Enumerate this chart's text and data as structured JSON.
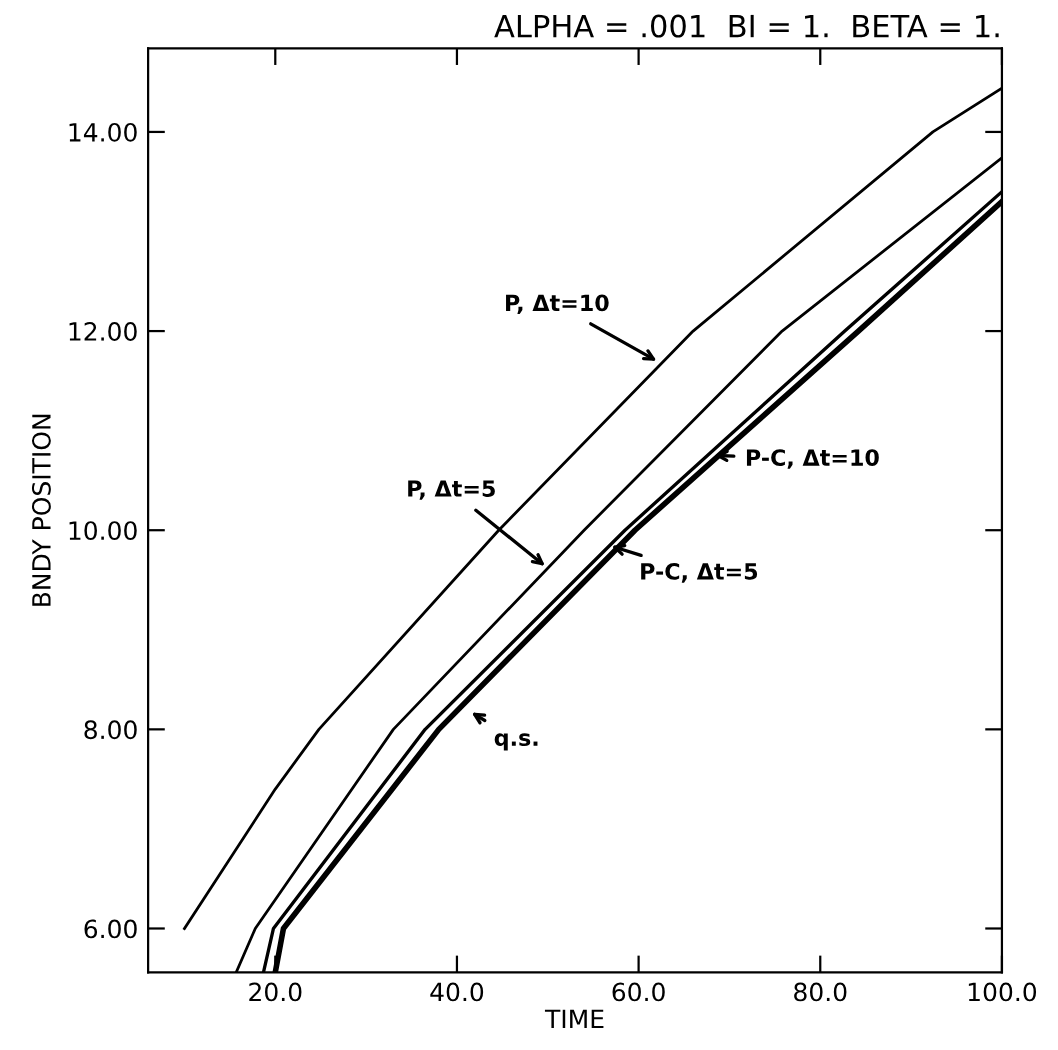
{
  "chart_data": {
    "type": "line",
    "title": "ALPHA = .001  BI = 1.  BETA = 1.",
    "xlabel": "TIME",
    "ylabel": "BNDY POSITION",
    "series": [
      {
        "color": "#000000",
        "x": [
          10,
          20,
          24.8,
          44.6,
          66,
          92.4,
          100
        ],
        "values": [
          6,
          7.4,
          8,
          10,
          12,
          14,
          14.44
        ]
      },
      {
        "color": "#000000",
        "x": [
          15.7,
          17.8,
          33,
          54,
          75.8,
          100
        ],
        "values": [
          5.56,
          6,
          8,
          10,
          12,
          13.74
        ]
      },
      {
        "color": "#000000",
        "x": [
          18.7,
          19.8,
          36.5,
          58.5,
          82.7,
          100
        ],
        "values": [
          5.56,
          6,
          8,
          10,
          12,
          13.4
        ]
      },
      {
        "color": "#000000",
        "x": [
          20,
          20.9,
          38,
          59.6,
          84.2,
          100
        ],
        "values": [
          5.56,
          6,
          8,
          10,
          12,
          13.3
        ]
      }
    ],
    "annotations": [
      {
        "text": "P, Δt=10",
        "x": 62,
        "y": 11.7
      },
      {
        "text": "P, Δt=5",
        "x": 49.7,
        "y": 9.64
      },
      {
        "text": "P-C, Δt=10",
        "x": 66.2,
        "y": 10.76
      },
      {
        "text": "P-C, Δt=5",
        "x": 57,
        "y": 9.84
      },
      {
        "text": "q.s.",
        "x": 41.6,
        "y": 8.17
      }
    ],
    "xlim": [
      6,
      100
    ],
    "ylim": [
      5.56,
      14.84
    ],
    "xticks": [
      {
        "value": 20,
        "label": "20.0"
      },
      {
        "value": 40,
        "label": "40.0"
      },
      {
        "value": 60,
        "label": "60.0"
      },
      {
        "value": 80,
        "label": "80.0"
      },
      {
        "value": 100,
        "label": "100.0"
      }
    ],
    "yticks": [
      {
        "value": 6,
        "label": "6.00"
      },
      {
        "value": 8,
        "label": "8.00"
      },
      {
        "value": 10,
        "label": "10.00"
      },
      {
        "value": 12,
        "label": "12.00"
      },
      {
        "value": 14,
        "label": "14.00"
      }
    ],
    "grid": false,
    "legend": false,
    "marker": "none",
    "line_style": "solid"
  }
}
